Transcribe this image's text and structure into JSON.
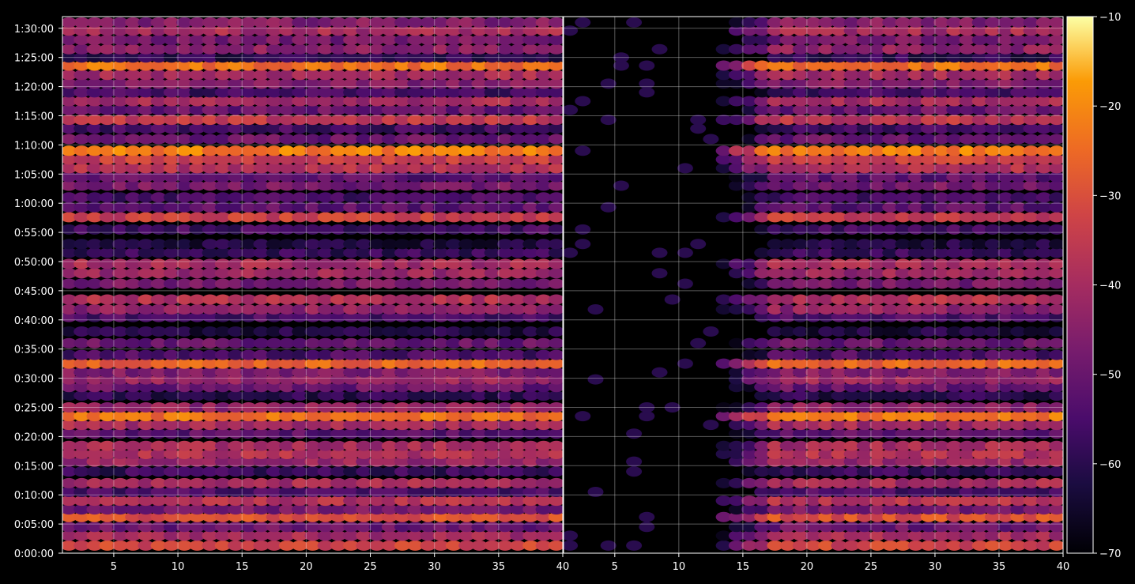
{
  "chart_data": {
    "type": "heatmap",
    "colormap": "inferno",
    "background": "#000000",
    "grid": true,
    "panels": [
      {
        "name": "left",
        "x_ticks": [
          5,
          10,
          15,
          20,
          25,
          30,
          35,
          40
        ],
        "xlim": [
          1,
          40
        ],
        "intensity_profile": "full"
      },
      {
        "name": "right",
        "x_ticks": [
          5,
          10,
          15,
          20,
          25,
          30,
          35,
          40
        ],
        "xlim": [
          1,
          40
        ],
        "intensity_profile": "rising_from_13"
      }
    ],
    "y_ticks": [
      "0:00:00",
      "0:05:00",
      "0:10:00",
      "0:15:00",
      "0:20:00",
      "0:25:00",
      "0:30:00",
      "0:35:00",
      "0:40:00",
      "0:45:00",
      "0:50:00",
      "0:55:00",
      "1:00:00",
      "1:05:00",
      "1:10:00",
      "1:15:00",
      "1:20:00",
      "1:25:00",
      "1:30:00"
    ],
    "ylim_minutes": [
      0,
      92
    ],
    "colorbar": {
      "ticks": [
        "−10",
        "−20",
        "−30",
        "−40",
        "−50",
        "−60",
        "−70"
      ],
      "range": [
        -70,
        -10
      ]
    },
    "time_bands_minutes": [
      {
        "t": 1.3,
        "v": -33
      },
      {
        "t": 3.0,
        "v": -40
      },
      {
        "t": 4.5,
        "v": -50
      },
      {
        "t": 6.2,
        "v": -30
      },
      {
        "t": 7.5,
        "v": -48
      },
      {
        "t": 9.0,
        "v": -38
      },
      {
        "t": 10.5,
        "v": -55
      },
      {
        "t": 12.0,
        "v": -40
      },
      {
        "t": 14.0,
        "v": -58
      },
      {
        "t": 15.7,
        "v": -42
      },
      {
        "t": 17.0,
        "v": -38
      },
      {
        "t": 18.4,
        "v": -40
      },
      {
        "t": 20.5,
        "v": -52
      },
      {
        "t": 22.0,
        "v": -40
      },
      {
        "t": 23.5,
        "v": -24
      },
      {
        "t": 25.0,
        "v": -44
      },
      {
        "t": 27.0,
        "v": -60
      },
      {
        "t": 28.5,
        "v": -50
      },
      {
        "t": 29.8,
        "v": -42
      },
      {
        "t": 31.0,
        "v": -46
      },
      {
        "t": 32.5,
        "v": -26
      },
      {
        "t": 34.0,
        "v": -55
      },
      {
        "t": 36.0,
        "v": -50
      },
      {
        "t": 38.0,
        "v": -62
      },
      {
        "t": 40.5,
        "v": -55
      },
      {
        "t": 41.8,
        "v": -44
      },
      {
        "t": 43.5,
        "v": -38
      },
      {
        "t": 46.2,
        "v": -48
      },
      {
        "t": 48.0,
        "v": -42
      },
      {
        "t": 49.6,
        "v": -40
      },
      {
        "t": 51.5,
        "v": -58
      },
      {
        "t": 53.0,
        "v": -62
      },
      {
        "t": 55.5,
        "v": -56
      },
      {
        "t": 57.6,
        "v": -34
      },
      {
        "t": 59.3,
        "v": -52
      },
      {
        "t": 61.0,
        "v": -55
      },
      {
        "t": 63.0,
        "v": -48
      },
      {
        "t": 64.5,
        "v": -52
      },
      {
        "t": 66.0,
        "v": -38
      },
      {
        "t": 67.5,
        "v": -34
      },
      {
        "t": 69.0,
        "v": -22
      },
      {
        "t": 71.0,
        "v": -50
      },
      {
        "t": 72.8,
        "v": -56
      },
      {
        "t": 74.3,
        "v": -36
      },
      {
        "t": 76.0,
        "v": -50
      },
      {
        "t": 77.5,
        "v": -40
      },
      {
        "t": 79.0,
        "v": -56
      },
      {
        "t": 80.5,
        "v": -46
      },
      {
        "t": 82.0,
        "v": -40
      },
      {
        "t": 83.6,
        "v": -24
      },
      {
        "t": 85.0,
        "v": -60
      },
      {
        "t": 86.4,
        "v": -44
      },
      {
        "t": 88.0,
        "v": -48
      },
      {
        "t": 89.6,
        "v": -40
      },
      {
        "t": 91.0,
        "v": -46
      }
    ]
  }
}
